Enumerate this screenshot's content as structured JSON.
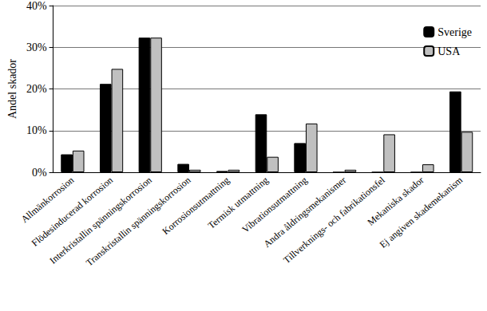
{
  "chart_data": {
    "type": "bar",
    "y_label": "Andel skador",
    "categories": [
      "Allmänkorrosion",
      "Flödesinducerad korrosion",
      "Interkristallin spänningskorrosion",
      "Transkristallin spänningskorrosion",
      "Korrosionsutmattning",
      "Termisk utmattning",
      "Vibrationsutmattning",
      "Andra åldringsmekanismer",
      "Tillverknings- och fabrikationsfel",
      "Mekaniska skador",
      "Ej angiven skademekanism"
    ],
    "series": [
      {
        "name": "Sverige",
        "color": "#000000",
        "values": [
          4.3,
          21.2,
          32.3,
          2.0,
          0.3,
          13.9,
          7.0,
          0,
          0,
          0,
          19.4
        ]
      },
      {
        "name": "USA",
        "color": "#c0c0c0",
        "values": [
          5.2,
          24.8,
          32.3,
          0.6,
          0.6,
          3.7,
          11.7,
          0.6,
          9.1,
          1.9,
          9.7
        ]
      }
    ],
    "ylim": [
      0,
      40
    ],
    "yticks": [
      {
        "value": 0,
        "label": "0%"
      },
      {
        "value": 10,
        "label": "10%"
      },
      {
        "value": 20,
        "label": "20%"
      },
      {
        "value": 30,
        "label": "30%"
      },
      {
        "value": 40,
        "label": "40%"
      }
    ],
    "grid": true,
    "legend": "upper right"
  }
}
